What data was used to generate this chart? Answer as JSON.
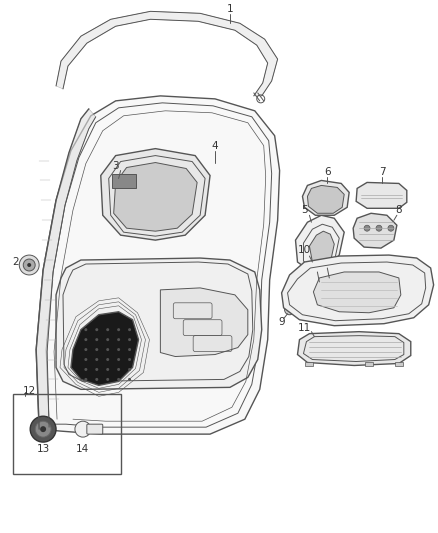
{
  "bg_color": "#ffffff",
  "line_color": "#555555",
  "dark_color": "#333333",
  "label_color": "#333333",
  "fig_width": 4.38,
  "fig_height": 5.33,
  "dpi": 100
}
